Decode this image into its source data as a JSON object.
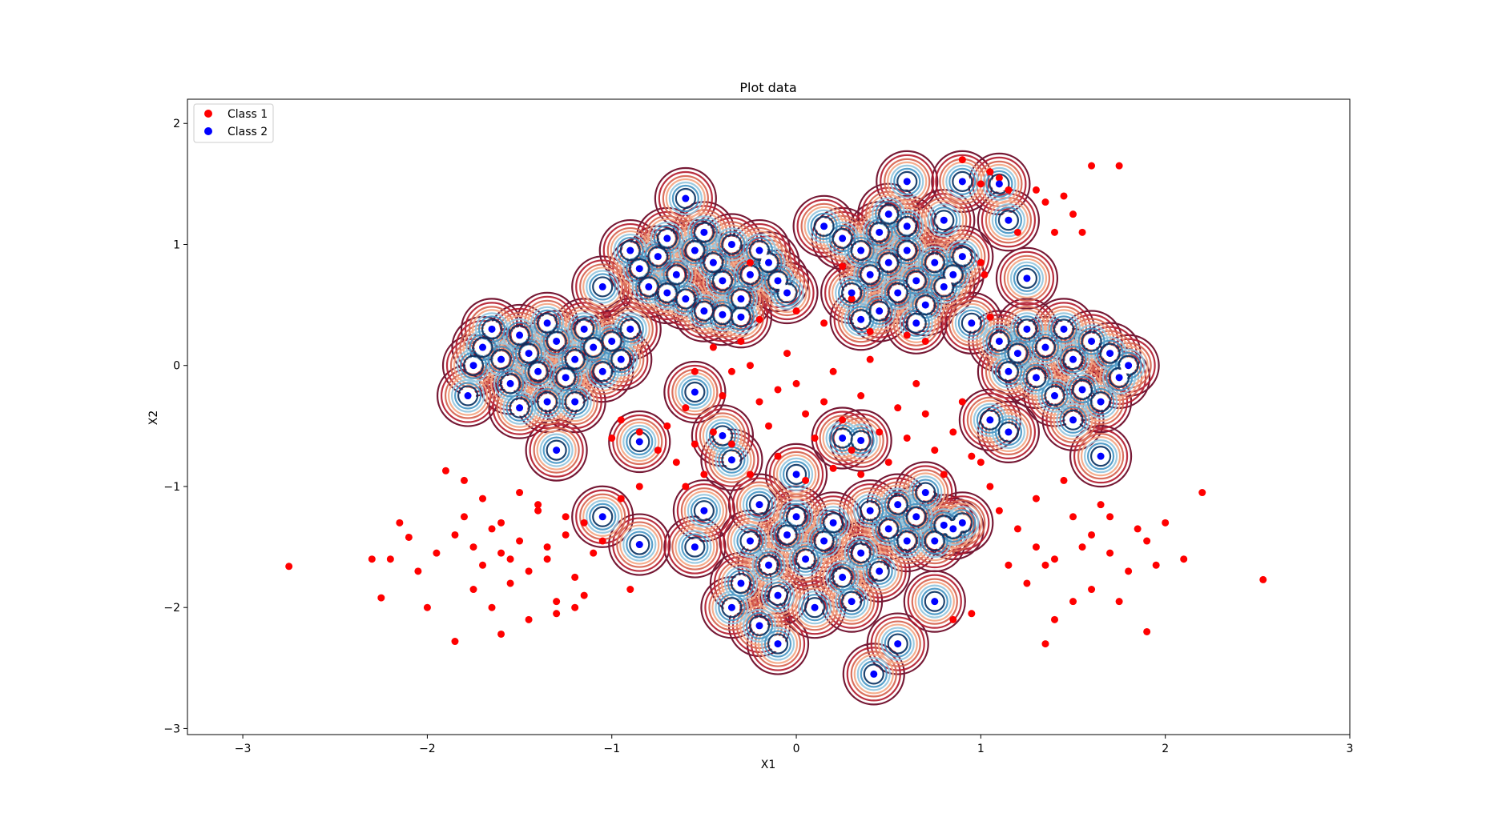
{
  "chart_data": {
    "type": "scatter",
    "title": "Plot data",
    "xlabel": "X1",
    "ylabel": "X2",
    "xlim": [
      -3.3,
      3.0
    ],
    "ylim": [
      -3.05,
      2.2
    ],
    "xticks": [
      -3,
      -2,
      -1,
      0,
      1,
      2,
      3
    ],
    "yticks": [
      -3,
      -2,
      -1,
      0,
      1,
      2
    ],
    "xtick_labels": [
      "−3",
      "−2",
      "−1",
      "0",
      "1",
      "2",
      "3"
    ],
    "ytick_labels": [
      "−3",
      "−2",
      "−1",
      "0",
      "1",
      "2"
    ],
    "grid": false,
    "legend_position": "top-left",
    "series": [
      {
        "name": "Class 1",
        "color": "#ff0000",
        "points": [
          [
            -2.75,
            -1.66
          ],
          [
            -2.25,
            -1.92
          ],
          [
            -2.1,
            -1.42
          ],
          [
            -2.2,
            -1.6
          ],
          [
            -2.05,
            -1.7
          ],
          [
            -1.95,
            -1.55
          ],
          [
            -1.85,
            -1.4
          ],
          [
            -1.8,
            -1.25
          ],
          [
            -1.75,
            -1.5
          ],
          [
            -1.7,
            -1.65
          ],
          [
            -1.65,
            -1.35
          ],
          [
            -1.6,
            -1.55
          ],
          [
            -1.55,
            -1.8
          ],
          [
            -1.5,
            -1.45
          ],
          [
            -1.45,
            -1.7
          ],
          [
            -1.4,
            -1.2
          ],
          [
            -1.35,
            -1.6
          ],
          [
            -1.3,
            -1.95
          ],
          [
            -1.25,
            -1.4
          ],
          [
            -1.2,
            -1.75
          ],
          [
            -1.15,
            -1.3
          ],
          [
            -1.1,
            -1.55
          ],
          [
            -1.9,
            -0.87
          ],
          [
            -1.8,
            -0.95
          ],
          [
            -1.7,
            -1.1
          ],
          [
            -1.6,
            -1.3
          ],
          [
            -1.5,
            -1.05
          ],
          [
            -1.4,
            -1.15
          ],
          [
            -2.15,
            -1.3
          ],
          [
            -2.0,
            -2.0
          ],
          [
            -1.85,
            -2.28
          ],
          [
            -1.6,
            -2.22
          ],
          [
            -1.45,
            -2.1
          ],
          [
            -1.3,
            -2.05
          ],
          [
            -1.2,
            -2.0
          ],
          [
            -0.95,
            -1.1
          ],
          [
            -0.85,
            -1.0
          ],
          [
            -0.9,
            -1.85
          ],
          [
            -1.05,
            -1.45
          ],
          [
            -2.3,
            -1.6
          ],
          [
            -1.75,
            -1.85
          ],
          [
            -1.65,
            -2.0
          ],
          [
            -1.55,
            -1.6
          ],
          [
            -1.35,
            -1.5
          ],
          [
            -1.25,
            -1.25
          ],
          [
            -1.15,
            -1.9
          ],
          [
            -1.0,
            -0.6
          ],
          [
            -0.95,
            -0.45
          ],
          [
            -0.85,
            -0.55
          ],
          [
            -0.75,
            -0.7
          ],
          [
            -0.65,
            -0.8
          ],
          [
            -0.7,
            -0.5
          ],
          [
            -0.6,
            -0.35
          ],
          [
            -0.55,
            -0.65
          ],
          [
            -0.45,
            -0.55
          ],
          [
            -0.4,
            -0.25
          ],
          [
            -0.35,
            -0.05
          ],
          [
            -0.3,
            0.2
          ],
          [
            -0.25,
            0.0
          ],
          [
            -0.2,
            -0.3
          ],
          [
            -0.15,
            -0.5
          ],
          [
            -0.1,
            -0.2
          ],
          [
            -0.05,
            0.1
          ],
          [
            0.0,
            -0.15
          ],
          [
            0.05,
            -0.4
          ],
          [
            0.1,
            -0.6
          ],
          [
            0.15,
            -0.3
          ],
          [
            0.2,
            -0.05
          ],
          [
            0.25,
            -0.45
          ],
          [
            0.3,
            -0.7
          ],
          [
            0.35,
            -0.25
          ],
          [
            0.4,
            0.05
          ],
          [
            0.45,
            -0.55
          ],
          [
            0.5,
            -0.8
          ],
          [
            0.55,
            -0.35
          ],
          [
            0.6,
            -0.6
          ],
          [
            0.65,
            -0.15
          ],
          [
            0.7,
            -0.4
          ],
          [
            0.75,
            -0.7
          ],
          [
            0.8,
            -0.9
          ],
          [
            0.85,
            -0.55
          ],
          [
            0.9,
            -0.3
          ],
          [
            0.95,
            -0.75
          ],
          [
            0.35,
            -0.9
          ],
          [
            0.2,
            -0.85
          ],
          [
            0.05,
            -0.95
          ],
          [
            -0.1,
            -0.75
          ],
          [
            -0.25,
            -0.9
          ],
          [
            -0.35,
            -0.65
          ],
          [
            -0.5,
            -0.9
          ],
          [
            -0.6,
            -1.0
          ],
          [
            0.25,
            0.82
          ],
          [
            -0.25,
            0.85
          ],
          [
            -0.2,
            0.38
          ],
          [
            0.0,
            0.45
          ],
          [
            0.15,
            0.35
          ],
          [
            0.3,
            0.55
          ],
          [
            -0.45,
            0.15
          ],
          [
            -0.55,
            -0.05
          ],
          [
            0.6,
            0.25
          ],
          [
            0.7,
            0.2
          ],
          [
            0.4,
            0.28
          ],
          [
            0.9,
            1.7
          ],
          [
            1.0,
            1.5
          ],
          [
            1.05,
            1.6
          ],
          [
            1.1,
            1.55
          ],
          [
            1.15,
            1.45
          ],
          [
            1.3,
            1.45
          ],
          [
            1.35,
            1.35
          ],
          [
            1.45,
            1.4
          ],
          [
            1.5,
            1.25
          ],
          [
            1.4,
            1.1
          ],
          [
            1.2,
            1.1
          ],
          [
            1.6,
            1.65
          ],
          [
            1.75,
            1.65
          ],
          [
            1.55,
            1.1
          ],
          [
            1.0,
            0.85
          ],
          [
            1.02,
            0.75
          ],
          [
            1.05,
            0.4
          ],
          [
            1.0,
            -0.8
          ],
          [
            1.05,
            -1.0
          ],
          [
            1.1,
            -1.2
          ],
          [
            1.2,
            -1.35
          ],
          [
            1.3,
            -1.5
          ],
          [
            1.4,
            -1.6
          ],
          [
            1.5,
            -1.25
          ],
          [
            1.6,
            -1.4
          ],
          [
            1.7,
            -1.55
          ],
          [
            1.8,
            -1.7
          ],
          [
            1.9,
            -1.45
          ],
          [
            2.0,
            -1.3
          ],
          [
            2.1,
            -1.6
          ],
          [
            2.2,
            -1.05
          ],
          [
            2.53,
            -1.77
          ],
          [
            1.9,
            -2.2
          ],
          [
            1.35,
            -2.3
          ],
          [
            1.4,
            -2.1
          ],
          [
            1.5,
            -1.95
          ],
          [
            1.25,
            -1.8
          ],
          [
            1.15,
            -1.65
          ],
          [
            1.6,
            -1.85
          ],
          [
            1.7,
            -1.25
          ],
          [
            1.75,
            -1.95
          ],
          [
            1.85,
            -1.35
          ],
          [
            1.45,
            -0.95
          ],
          [
            1.3,
            -1.1
          ],
          [
            1.55,
            -1.5
          ],
          [
            1.65,
            -1.15
          ],
          [
            1.35,
            -1.65
          ],
          [
            1.95,
            -1.65
          ],
          [
            0.85,
            -2.1
          ],
          [
            0.95,
            -2.05
          ]
        ]
      },
      {
        "name": "Class 2",
        "color": "#0000ff",
        "points": [
          [
            -1.78,
            -0.25
          ],
          [
            -1.75,
            -0.0
          ],
          [
            -1.7,
            0.15
          ],
          [
            -1.65,
            0.3
          ],
          [
            -1.6,
            0.05
          ],
          [
            -1.55,
            -0.15
          ],
          [
            -1.5,
            0.25
          ],
          [
            -1.45,
            0.1
          ],
          [
            -1.4,
            -0.05
          ],
          [
            -1.35,
            0.35
          ],
          [
            -1.3,
            0.2
          ],
          [
            -1.25,
            -0.1
          ],
          [
            -1.2,
            0.05
          ],
          [
            -1.15,
            0.3
          ],
          [
            -1.1,
            0.15
          ],
          [
            -1.05,
            -0.05
          ],
          [
            -1.0,
            0.2
          ],
          [
            -0.95,
            0.05
          ],
          [
            -0.9,
            0.3
          ],
          [
            -1.5,
            -0.35
          ],
          [
            -1.35,
            -0.3
          ],
          [
            -1.2,
            -0.3
          ],
          [
            -1.05,
            0.65
          ],
          [
            -0.9,
            0.95
          ],
          [
            -0.85,
            0.8
          ],
          [
            -0.8,
            0.65
          ],
          [
            -0.75,
            0.9
          ],
          [
            -0.7,
            1.05
          ],
          [
            -0.65,
            0.75
          ],
          [
            -0.6,
            0.55
          ],
          [
            -0.55,
            0.95
          ],
          [
            -0.5,
            1.1
          ],
          [
            -0.45,
            0.85
          ],
          [
            -0.4,
            0.7
          ],
          [
            -0.35,
            1.0
          ],
          [
            -0.3,
            0.55
          ],
          [
            -0.25,
            0.75
          ],
          [
            -0.2,
            0.95
          ],
          [
            -0.15,
            0.85
          ],
          [
            -0.1,
            0.7
          ],
          [
            -0.05,
            0.6
          ],
          [
            -0.5,
            0.45
          ],
          [
            -0.4,
            0.42
          ],
          [
            -0.6,
            1.38
          ],
          [
            -0.3,
            0.4
          ],
          [
            -0.7,
            0.6
          ],
          [
            0.15,
            1.15
          ],
          [
            0.25,
            1.05
          ],
          [
            0.35,
            0.95
          ],
          [
            0.4,
            0.75
          ],
          [
            0.45,
            1.1
          ],
          [
            0.5,
            0.85
          ],
          [
            0.55,
            0.6
          ],
          [
            0.6,
            0.95
          ],
          [
            0.65,
            0.7
          ],
          [
            0.7,
            0.5
          ],
          [
            0.75,
            0.85
          ],
          [
            0.8,
            0.65
          ],
          [
            0.85,
            0.75
          ],
          [
            0.9,
            0.9
          ],
          [
            0.6,
            1.15
          ],
          [
            0.5,
            1.25
          ],
          [
            0.6,
            1.52
          ],
          [
            0.45,
            0.45
          ],
          [
            0.65,
            0.35
          ],
          [
            0.3,
            0.6
          ],
          [
            0.35,
            0.38
          ],
          [
            0.8,
            1.2
          ],
          [
            0.9,
            1.52
          ],
          [
            1.1,
            1.5
          ],
          [
            1.15,
            1.2
          ],
          [
            0.95,
            0.35
          ],
          [
            1.1,
            0.2
          ],
          [
            1.15,
            -0.05
          ],
          [
            1.2,
            0.1
          ],
          [
            1.25,
            0.3
          ],
          [
            1.3,
            -0.1
          ],
          [
            1.35,
            0.15
          ],
          [
            1.4,
            -0.25
          ],
          [
            1.45,
            0.3
          ],
          [
            1.5,
            0.05
          ],
          [
            1.55,
            -0.2
          ],
          [
            1.6,
            0.2
          ],
          [
            1.65,
            -0.3
          ],
          [
            1.7,
            0.1
          ],
          [
            1.75,
            -0.1
          ],
          [
            1.25,
            0.72
          ],
          [
            1.05,
            -0.45
          ],
          [
            1.15,
            -0.55
          ],
          [
            1.5,
            -0.45
          ],
          [
            1.65,
            -0.75
          ],
          [
            1.8,
            0.0
          ],
          [
            -0.5,
            -1.2
          ],
          [
            -0.55,
            -1.5
          ],
          [
            -0.25,
            -1.45
          ],
          [
            -0.2,
            -1.15
          ],
          [
            -0.15,
            -1.65
          ],
          [
            -0.1,
            -1.9
          ],
          [
            -0.05,
            -1.4
          ],
          [
            0.0,
            -1.25
          ],
          [
            0.05,
            -1.6
          ],
          [
            0.1,
            -2.0
          ],
          [
            0.15,
            -1.45
          ],
          [
            0.2,
            -1.3
          ],
          [
            0.25,
            -1.75
          ],
          [
            0.3,
            -1.95
          ],
          [
            0.35,
            -1.55
          ],
          [
            0.4,
            -1.2
          ],
          [
            0.45,
            -1.7
          ],
          [
            0.5,
            -1.35
          ],
          [
            0.55,
            -1.15
          ],
          [
            0.6,
            -1.45
          ],
          [
            0.65,
            -1.25
          ],
          [
            0.7,
            -1.05
          ],
          [
            0.75,
            -1.45
          ],
          [
            0.8,
            -1.32
          ],
          [
            0.85,
            -1.35
          ],
          [
            0.9,
            -1.3
          ],
          [
            0.75,
            -1.95
          ],
          [
            0.55,
            -2.3
          ],
          [
            0.42,
            -2.55
          ],
          [
            -0.3,
            -1.8
          ],
          [
            -0.35,
            -2.0
          ],
          [
            -0.2,
            -2.15
          ],
          [
            -0.1,
            -2.3
          ],
          [
            -0.85,
            -1.48
          ],
          [
            -1.05,
            -1.25
          ],
          [
            -1.3,
            -0.7
          ],
          [
            -0.85,
            -0.63
          ],
          [
            -0.4,
            -0.58
          ],
          [
            0.35,
            -0.62
          ],
          [
            -0.55,
            -0.22
          ],
          [
            -0.35,
            -0.78
          ],
          [
            0.0,
            -0.9
          ],
          [
            0.25,
            -0.6
          ]
        ]
      }
    ]
  }
}
